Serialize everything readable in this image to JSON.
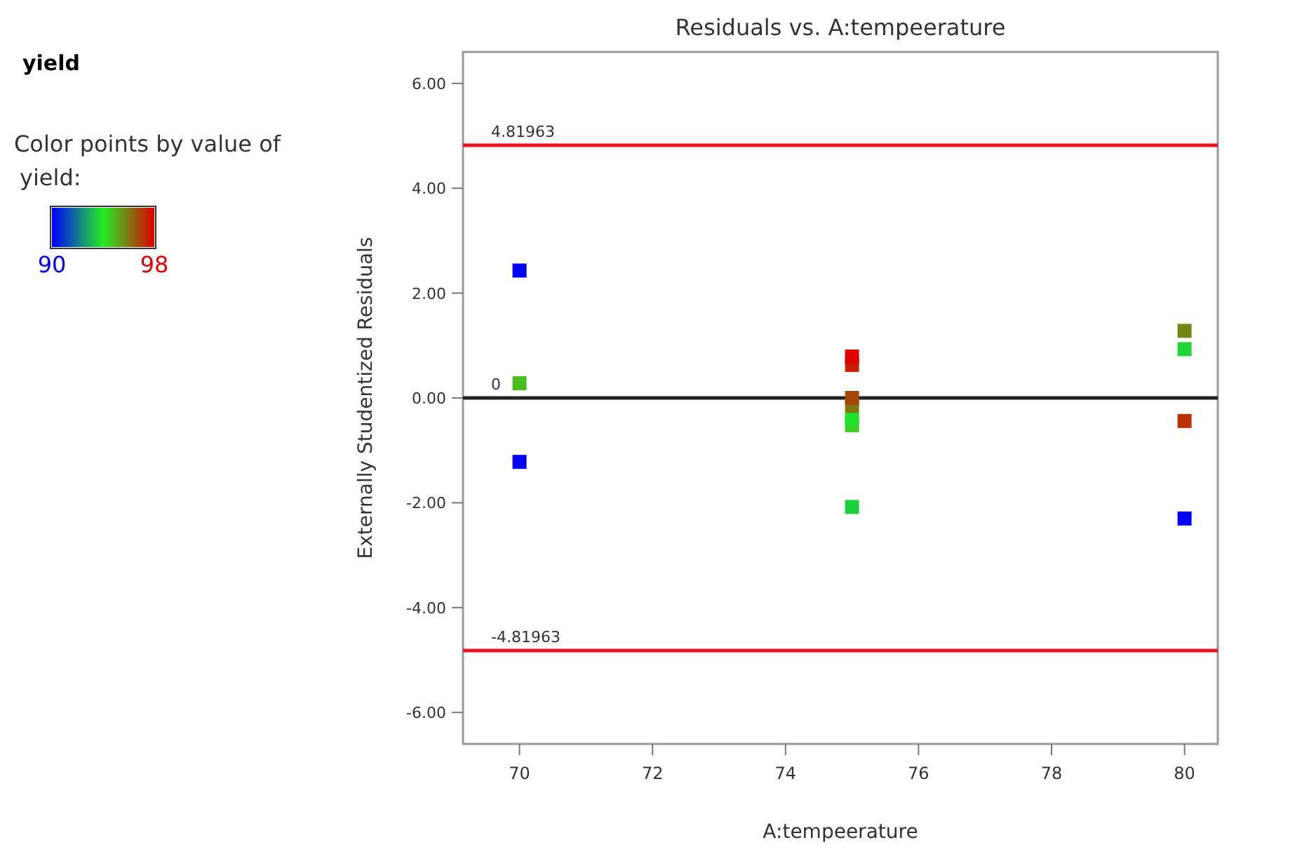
{
  "chart_data": {
    "type": "scatter",
    "title": "Residuals vs. A:tempeerature",
    "xlabel": "A:tempeerature",
    "ylabel": "Externally Studentized Residuals",
    "annotations": [
      "yield"
    ],
    "clabel": "Color points by value of yield:",
    "clim": [
      90,
      98
    ],
    "cticks": [
      90,
      98
    ],
    "x": [
      70,
      70,
      70,
      75,
      75,
      75,
      75,
      75,
      75,
      75,
      80,
      80,
      80,
      80
    ],
    "values": [
      2.43,
      0.28,
      -1.22,
      0.79,
      0.63,
      0,
      -0.15,
      -0.39,
      -0.52,
      -2.08,
      1.28,
      0.93,
      -0.44,
      -2.3
    ],
    "cvalues": [
      90,
      94.8,
      90,
      98,
      97.5,
      96.8,
      96,
      93.8,
      94.5,
      93.5,
      95.8,
      93.6,
      97.2,
      90
    ],
    "marker": "square",
    "xlim": [
      69.15,
      80.5
    ],
    "xticks": [
      70,
      72,
      74,
      76,
      78,
      80
    ],
    "ylim": [
      -6.6,
      6.6
    ],
    "yticks": [
      {
        "value": -6,
        "label": "-6.00"
      },
      {
        "value": -4,
        "label": "-4.00"
      },
      {
        "value": -2,
        "label": "-2.00"
      },
      {
        "value": 0,
        "label": "0.00"
      },
      {
        "value": 2,
        "label": "2.00"
      },
      {
        "value": 4,
        "label": "4.00"
      },
      {
        "value": 6,
        "label": "6.00"
      }
    ],
    "ref_lines": [
      {
        "axis": "y",
        "value": 4.81963,
        "label": "4.81963",
        "color": "#e8141c"
      },
      {
        "axis": "y",
        "value": 0,
        "label": "0",
        "color": "#222222"
      },
      {
        "axis": "y",
        "value": -4.81963,
        "label": "-4.81963",
        "color": "#e8141c"
      }
    ],
    "grid": false
  }
}
